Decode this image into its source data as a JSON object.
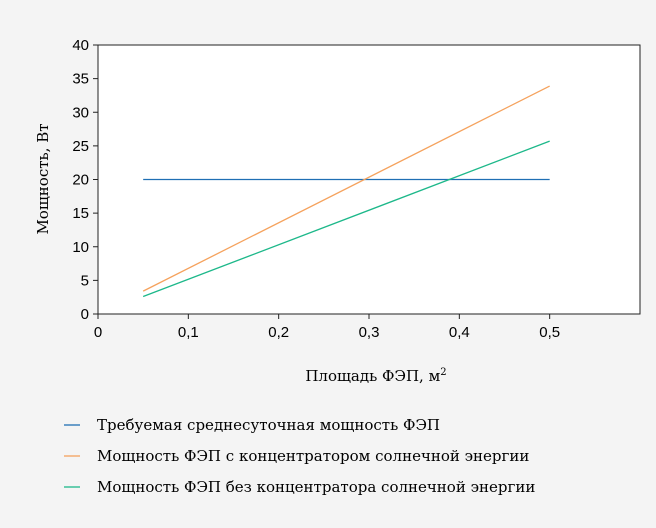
{
  "chart_data": {
    "type": "line",
    "xlabel": "Площадь ФЭП, м",
    "xlabel_sup": "2",
    "ylabel": "Мощность, Вт",
    "xlim": [
      0,
      0.6
    ],
    "ylim": [
      0,
      40
    ],
    "xticks": [
      0,
      0.1,
      0.2,
      0.3,
      0.4,
      0.5
    ],
    "xtick_labels": [
      "0",
      "0,1",
      "0,2",
      "0,3",
      "0,4",
      "0,5"
    ],
    "yticks": [
      0,
      5,
      10,
      15,
      20,
      25,
      30,
      35,
      40
    ],
    "ytick_labels": [
      "0",
      "5",
      "10",
      "15",
      "20",
      "25",
      "30",
      "35",
      "40"
    ],
    "grid": false,
    "legend_position": "bottom",
    "series": [
      {
        "name": "Требуемая среднесуточная мощность ФЭП",
        "color": "#1f6fb4",
        "x": [
          0.05,
          0.5
        ],
        "y": [
          20,
          20
        ]
      },
      {
        "name": "Мощность ФЭП с концентратором солнечной энергии",
        "color": "#f5a25d",
        "x": [
          0.05,
          0.5
        ],
        "y": [
          3.4,
          33.9
        ]
      },
      {
        "name": "Мощность ФЭП без концентратора солнечной энергии",
        "color": "#1db88a",
        "x": [
          0.05,
          0.5
        ],
        "y": [
          2.6,
          25.7
        ]
      }
    ]
  }
}
